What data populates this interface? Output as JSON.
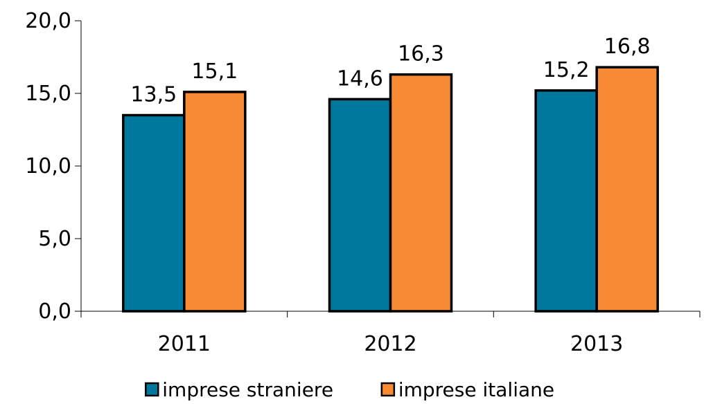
{
  "chart_data": {
    "type": "bar",
    "title": "",
    "xlabel": "",
    "ylabel": "",
    "categories": [
      "2011",
      "2012",
      "2013"
    ],
    "series": [
      {
        "name": "imprese straniere",
        "values": [
          13.5,
          14.6,
          15.2
        ],
        "labels": [
          "13,5",
          "14,6",
          "15,2"
        ],
        "color": "#00789e"
      },
      {
        "name": "imprese italiane",
        "values": [
          15.1,
          16.3,
          16.8
        ],
        "labels": [
          "15,1",
          "16,3",
          "16,8"
        ],
        "color": "#f68b33"
      }
    ],
    "ylim": [
      0,
      20
    ],
    "yticks": [
      0,
      5,
      10,
      15,
      20
    ],
    "ytick_labels": [
      "0,0",
      "5,0",
      "10,0",
      "15,0",
      "20,0"
    ],
    "grid": false,
    "legend_position": "bottom"
  }
}
